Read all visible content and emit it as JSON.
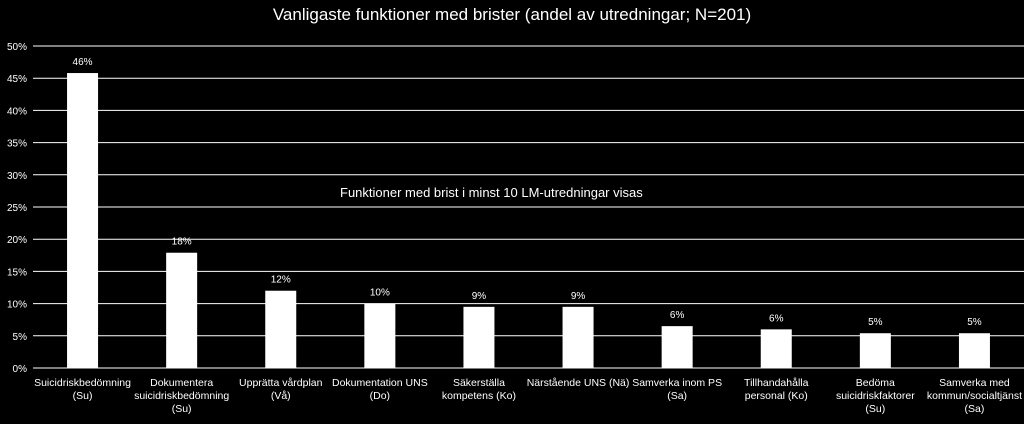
{
  "chart_data": {
    "type": "bar",
    "title": "Vanligaste funktioner med brister (andel av utredningar; N=201)",
    "annotation": "Funktioner med brist i minst 10 LM-utredningar visas",
    "categories": [
      [
        "Suicidriskbedömning",
        "(Su)"
      ],
      [
        "Dokumentera",
        "suicidriskbedömning",
        "(Su)"
      ],
      [
        "Upprätta vårdplan",
        "(Vå)"
      ],
      [
        "Dokumentation UNS",
        "(Do)"
      ],
      [
        "Säkerställa",
        "kompetens (Ko)"
      ],
      [
        "Närstående UNS (Nä)"
      ],
      [
        "Samverka inom PS",
        "(Sa)"
      ],
      [
        "Tillhandahålla",
        "personal (Ko)"
      ],
      [
        "Bedöma",
        "suicidriskfaktorer",
        "(Su)"
      ],
      [
        "Samverka med",
        "kommun/socialtjänst",
        "(Sa)"
      ]
    ],
    "values": [
      46,
      18,
      12,
      10,
      9,
      9,
      6,
      6,
      5,
      5
    ],
    "bar_values": [
      45.8,
      17.9,
      12.0,
      10.0,
      9.5,
      9.5,
      6.5,
      6.0,
      5.4,
      5.4
    ],
    "data_labels": [
      "46%",
      "18%",
      "12%",
      "10%",
      "9%",
      "9%",
      "6%",
      "6%",
      "5%",
      "5%"
    ],
    "ylim": [
      0,
      50
    ],
    "yticks": [
      "0%",
      "5%",
      "10%",
      "15%",
      "20%",
      "25%",
      "30%",
      "35%",
      "40%",
      "45%",
      "50%"
    ],
    "grid": true,
    "colors": {
      "background": "#000000",
      "bar": "#ffffff",
      "grid": "#ffffff",
      "text": "#ffffff"
    }
  }
}
